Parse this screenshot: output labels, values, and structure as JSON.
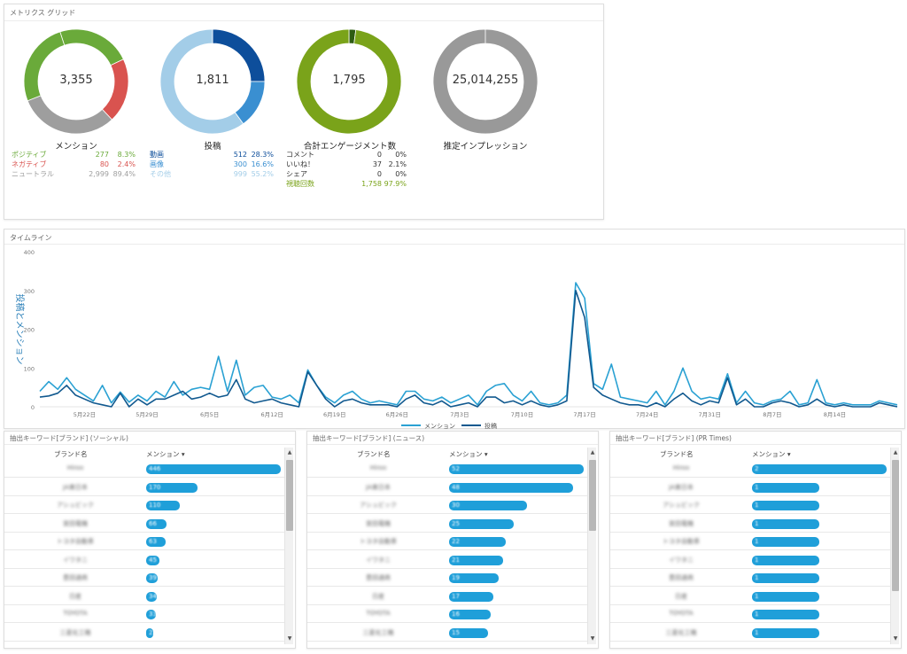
{
  "colors": {
    "positive": "#6aaa3a",
    "negative": "#d9534f",
    "neutral": "#9e9e9e",
    "post_dark": "#0d4e9b",
    "post_mid": "#3a8fd1",
    "post_light": "#a3cde8",
    "engagement": "#7aa31a",
    "engagement_dark": "#2e5c12",
    "impression": "#999999",
    "mention_line": "#2aa1d3",
    "post_line": "#11598f",
    "bar": "#1f9fd9"
  },
  "metrics": {
    "title": "メトリクス グリッド",
    "mention": {
      "total": "3,355",
      "label": "メンション",
      "rows": [
        {
          "name": "ポジティブ",
          "value": "277",
          "pct": "8.3%",
          "fraction": 0.083
        },
        {
          "name": "ネガティブ",
          "value": "80",
          "pct": "2.4%",
          "fraction": 0.024
        },
        {
          "name": "ニュートラル",
          "value": "2,999",
          "pct": "89.4%",
          "fraction": 0.894
        }
      ]
    },
    "posts": {
      "total": "1,811",
      "label": "投稿",
      "rows": [
        {
          "name": "動画",
          "value": "512",
          "pct": "28.3%",
          "fraction": 0.283
        },
        {
          "name": "画像",
          "value": "300",
          "pct": "16.6%",
          "fraction": 0.166
        },
        {
          "name": "その他",
          "value": "999",
          "pct": "55.2%",
          "fraction": 0.552
        }
      ]
    },
    "engagement": {
      "total": "1,795",
      "label": "合計エンゲージメント数",
      "rows": [
        {
          "name": "コメント",
          "value": "0",
          "pct": "0%",
          "fraction": 0
        },
        {
          "name": "いいね！",
          "value": "37",
          "pct": "2.1%",
          "fraction": 0.021
        },
        {
          "name": "シェア",
          "value": "0",
          "pct": "0%",
          "fraction": 0
        },
        {
          "name": "視聴回数",
          "value": "1,758",
          "pct": "97.9%",
          "fraction": 0.979
        }
      ]
    },
    "impression": {
      "total": "25,014,255",
      "label": "推定インプレッション"
    }
  },
  "timeline": {
    "title": "タイムライン",
    "ylabel": "投稿とメンション",
    "legend": [
      "メンション",
      "投稿"
    ]
  },
  "chart_data": {
    "type": "line",
    "ylim": [
      0,
      400
    ],
    "yticks": [
      "0",
      "100",
      "200",
      "300",
      "400"
    ],
    "xticks": [
      "5月22日",
      "5月29日",
      "6月5日",
      "6月12日",
      "6月19日",
      "6月26日",
      "7月3日",
      "7月10日",
      "7月17日",
      "7月24日",
      "7月31日",
      "8月7日",
      "8月14日"
    ],
    "first_tick_index": 5,
    "tick_step": 7,
    "series": [
      {
        "name": "メンション",
        "values": [
          40,
          65,
          45,
          75,
          45,
          30,
          15,
          55,
          10,
          38,
          12,
          30,
          15,
          40,
          25,
          65,
          30,
          45,
          50,
          45,
          130,
          40,
          120,
          30,
          50,
          55,
          25,
          20,
          30,
          10,
          95,
          55,
          25,
          10,
          30,
          40,
          20,
          10,
          15,
          10,
          5,
          40,
          40,
          20,
          15,
          25,
          10,
          20,
          30,
          5,
          40,
          55,
          60,
          30,
          15,
          40,
          10,
          5,
          10,
          30,
          320,
          280,
          60,
          45,
          110,
          25,
          20,
          15,
          10,
          40,
          5,
          40,
          100,
          40,
          20,
          25,
          20,
          85,
          10,
          40,
          10,
          5,
          15,
          20,
          40,
          5,
          10,
          70,
          10,
          5,
          10,
          5,
          5,
          5,
          15,
          10,
          5
        ]
      },
      {
        "name": "投稿",
        "values": [
          25,
          28,
          35,
          55,
          30,
          20,
          10,
          5,
          0,
          35,
          0,
          20,
          5,
          20,
          20,
          30,
          40,
          20,
          25,
          35,
          25,
          30,
          70,
          20,
          10,
          15,
          20,
          10,
          5,
          0,
          90,
          55,
          20,
          0,
          15,
          20,
          10,
          5,
          5,
          5,
          0,
          20,
          30,
          10,
          5,
          15,
          0,
          5,
          10,
          0,
          25,
          25,
          10,
          15,
          5,
          15,
          5,
          0,
          5,
          15,
          300,
          230,
          50,
          30,
          20,
          10,
          5,
          5,
          0,
          10,
          0,
          20,
          35,
          15,
          5,
          15,
          10,
          75,
          5,
          20,
          0,
          0,
          10,
          15,
          10,
          0,
          5,
          20,
          5,
          0,
          5,
          0,
          0,
          0,
          10,
          5,
          0
        ]
      }
    ]
  },
  "tables": [
    {
      "title": "抽出キーワード[ブランド] (ソーシャル)",
      "col_brand": "ブランド名",
      "col_mention": "メンション ▾",
      "max": 446,
      "rows": [
        {
          "brand": "Hiroo",
          "value": 446
        },
        {
          "brand": "JA東日本",
          "value": 170
        },
        {
          "brand": "アシュビック",
          "value": 110
        },
        {
          "brand": "宮田電機",
          "value": 66
        },
        {
          "brand": "トヨタ自動車",
          "value": 63
        },
        {
          "brand": "イワタニ",
          "value": 45
        },
        {
          "brand": "豊田通商",
          "value": 39
        },
        {
          "brand": "日産",
          "value": 34
        },
        {
          "brand": "TOYOTA",
          "value": 33
        },
        {
          "brand": "三菱化工機",
          "value": 22
        }
      ]
    },
    {
      "title": "抽出キーワード[ブランド] (ニュース)",
      "col_brand": "ブランド名",
      "col_mention": "メンション ▾",
      "max": 52,
      "rows": [
        {
          "brand": "Hiroo",
          "value": 52
        },
        {
          "brand": "JA東日本",
          "value": 48
        },
        {
          "brand": "アシュビック",
          "value": 30
        },
        {
          "brand": "宮田電機",
          "value": 25
        },
        {
          "brand": "トヨタ自動車",
          "value": 22
        },
        {
          "brand": "イワタニ",
          "value": 21
        },
        {
          "brand": "豊田通商",
          "value": 19
        },
        {
          "brand": "日産",
          "value": 17
        },
        {
          "brand": "TOYOTA",
          "value": 16
        },
        {
          "brand": "三菱化工機",
          "value": 15
        }
      ]
    },
    {
      "title": "抽出キーワード[ブランド] (PR Times)",
      "col_brand": "ブランド名",
      "col_mention": "メンション ▾",
      "max": 2,
      "rows": [
        {
          "brand": "Hiroo",
          "value": 2
        },
        {
          "brand": "JA東日本",
          "value": 1
        },
        {
          "brand": "アシュビック",
          "value": 1
        },
        {
          "brand": "宮田電機",
          "value": 1
        },
        {
          "brand": "トヨタ自動車",
          "value": 1
        },
        {
          "brand": "イワタニ",
          "value": 1
        },
        {
          "brand": "豊田通商",
          "value": 1
        },
        {
          "brand": "日産",
          "value": 1
        },
        {
          "brand": "TOYOTA",
          "value": 1
        },
        {
          "brand": "三菱化工機",
          "value": 1
        }
      ]
    }
  ]
}
